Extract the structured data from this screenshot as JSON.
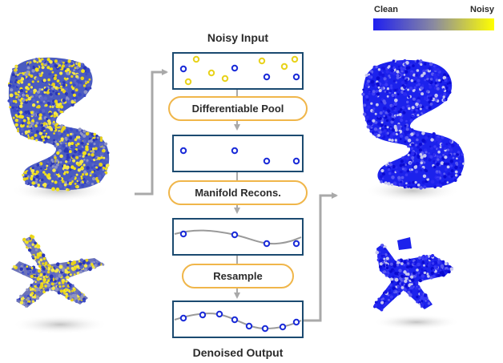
{
  "legend": {
    "clean_label": "Clean",
    "noisy_label": "Noisy",
    "clean_color": "#1f1ff0",
    "mid_color": "#8a8aa0",
    "noisy_color": "#ffff00"
  },
  "pipeline": {
    "input_title": "Noisy Input",
    "output_title": "Denoised Output",
    "steps": [
      "Differentiable Pool",
      "Manifold Recons.",
      "Resample"
    ]
  },
  "colors": {
    "panel_border": "#1b4a70",
    "step_border": "#f0b64a",
    "arrow": "#a9a9a9",
    "clean_point": "#1a2bd8",
    "noisy_point": "#e8d21a",
    "curve": "#9a9a9a"
  },
  "objects": [
    "noisy-chair",
    "noisy-airplane",
    "clean-chair",
    "clean-airplane"
  ]
}
